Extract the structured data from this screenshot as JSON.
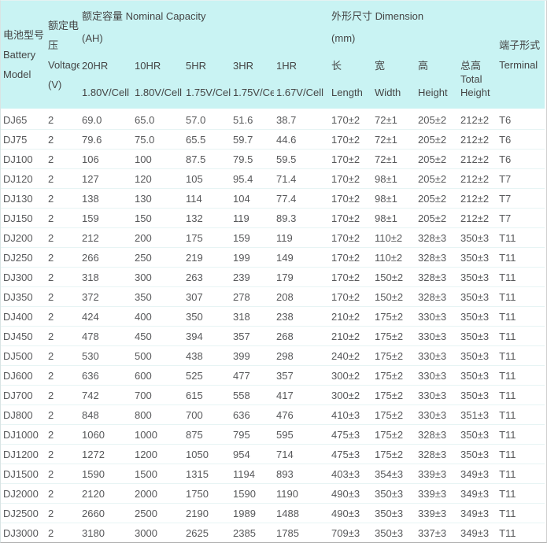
{
  "table": {
    "header": {
      "col_battery_model": "电池型号 Battery Model",
      "col_voltage": "额定电压 Voltage (V)",
      "group_capacity": {
        "title": "额定容量 Nominal Capacity",
        "unit": "(AH)"
      },
      "group_dimension": {
        "title": "外形尺寸 Dimension",
        "unit": "(mm)"
      },
      "col_terminal": "端子形式 Terminal",
      "subcols": [
        {
          "label": "20HR",
          "sub": "1.80V/Cell"
        },
        {
          "label": "10HR",
          "sub": "1.80V/Cell"
        },
        {
          "label": "5HR",
          "sub": "1.75V/Cell"
        },
        {
          "label": "3HR",
          "sub": "1.75V/Cell"
        },
        {
          "label": "1HR",
          "sub": "1.67V/Cell"
        },
        {
          "label": "长",
          "sub": "Length"
        },
        {
          "label": "宽",
          "sub": "Width"
        },
        {
          "label": "高",
          "sub": "Height"
        },
        {
          "label": "总高",
          "sub": "Total Height"
        }
      ]
    },
    "col_keys": [
      "model",
      "voltage",
      "cap-20hr",
      "cap-10hr",
      "cap-5hr",
      "cap-3hr",
      "cap-1hr",
      "length",
      "width",
      "height",
      "total-height",
      "terminal"
    ],
    "rows": [
      [
        "DJ65",
        "2",
        "69.0",
        "65.0",
        "57.0",
        "51.6",
        "38.7",
        "170±2",
        "72±1",
        "205±2",
        "212±2",
        "T6"
      ],
      [
        "DJ75",
        "2",
        "79.6",
        "75.0",
        "65.5",
        "59.7",
        "44.6",
        "170±2",
        "72±1",
        "205±2",
        "212±2",
        "T6"
      ],
      [
        "DJ100",
        "2",
        "106",
        "100",
        "87.5",
        "79.5",
        "59.5",
        "170±2",
        "72±1",
        "205±2",
        "212±2",
        "T6"
      ],
      [
        "DJ120",
        "2",
        "127",
        "120",
        "105",
        "95.4",
        "71.4",
        "170±2",
        "98±1",
        "205±2",
        "212±2",
        "T7"
      ],
      [
        "DJ130",
        "2",
        "138",
        "130",
        "114",
        "104",
        "77.4",
        "170±2",
        "98±1",
        "205±2",
        "212±2",
        "T7"
      ],
      [
        "DJ150",
        "2",
        "159",
        "150",
        "132",
        "119",
        "89.3",
        "170±2",
        "98±1",
        "205±2",
        "212±2",
        "T7"
      ],
      [
        "DJ200",
        "2",
        "212",
        "200",
        "175",
        "159",
        "119",
        "170±2",
        "110±2",
        "328±3",
        "350±3",
        "T11"
      ],
      [
        "DJ250",
        "2",
        "266",
        "250",
        "219",
        "199",
        "149",
        "170±2",
        "110±2",
        "328±3",
        "350±3",
        "T11"
      ],
      [
        "DJ300",
        "2",
        "318",
        "300",
        "263",
        "239",
        "179",
        "170±2",
        "150±2",
        "328±3",
        "350±3",
        "T11"
      ],
      [
        "DJ350",
        "2",
        "372",
        "350",
        "307",
        "278",
        "208",
        "170±2",
        "150±2",
        "328±3",
        "350±3",
        "T11"
      ],
      [
        "DJ400",
        "2",
        "424",
        "400",
        "350",
        "318",
        "238",
        "210±2",
        "175±2",
        "330±3",
        "350±3",
        "T11"
      ],
      [
        "DJ450",
        "2",
        "478",
        "450",
        "394",
        "357",
        "268",
        "210±2",
        "175±2",
        "330±3",
        "350±3",
        "T11"
      ],
      [
        "DJ500",
        "2",
        "530",
        "500",
        "438",
        "399",
        "298",
        "240±2",
        "175±2",
        "330±3",
        "350±3",
        "T11"
      ],
      [
        "DJ600",
        "2",
        "636",
        "600",
        "525",
        "477",
        "357",
        "300±2",
        "175±2",
        "330±3",
        "350±3",
        "T11"
      ],
      [
        "DJ700",
        "2",
        "742",
        "700",
        "615",
        "558",
        "417",
        "300±2",
        "175±2",
        "330±3",
        "350±3",
        "T11"
      ],
      [
        "DJ800",
        "2",
        "848",
        "800",
        "700",
        "636",
        "476",
        "410±3",
        "175±2",
        "330±3",
        "351±3",
        "T11"
      ],
      [
        "DJ1000",
        "2",
        "1060",
        "1000",
        "875",
        "795",
        "595",
        "475±3",
        "175±2",
        "328±3",
        "350±3",
        "T11"
      ],
      [
        "DJ1200",
        "2",
        "1272",
        "1200",
        "1050",
        "954",
        "714",
        "475±3",
        "175±2",
        "328±3",
        "350±3",
        "T11"
      ],
      [
        "DJ1500",
        "2",
        "1590",
        "1500",
        "1315",
        "1194",
        "893",
        "403±3",
        "354±3",
        "339±3",
        "349±3",
        "T11"
      ],
      [
        "DJ2000",
        "2",
        "2120",
        "2000",
        "1750",
        "1590",
        "1190",
        "490±3",
        "350±3",
        "339±3",
        "349±3",
        "T11"
      ],
      [
        "DJ2500",
        "2",
        "2660",
        "2500",
        "2190",
        "1989",
        "1488",
        "490±3",
        "350±3",
        "339±3",
        "349±3",
        "T11"
      ],
      [
        "DJ3000",
        "2",
        "3180",
        "3000",
        "2625",
        "2385",
        "1785",
        "709±3",
        "350±3",
        "337±3",
        "349±3",
        "T11"
      ]
    ]
  },
  "colors": {
    "header_bg": "#c9f3f3",
    "header_text": "#454545",
    "cell_text": "#57585a",
    "row_divider": "#e7f4f4",
    "outer_border_bottom": "#aeaeae"
  }
}
